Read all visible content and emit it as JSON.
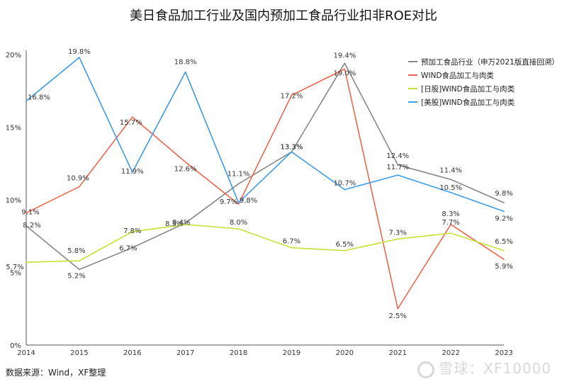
{
  "title": "美日食品加工行业及国内预加工食品行业扣非ROE对比",
  "source": "数据来源：Wind，XF整理",
  "watermark": "雪球：XF10000",
  "chart_data": {
    "type": "line",
    "categories": [
      "2014",
      "2015",
      "2016",
      "2017",
      "2018",
      "2019",
      "2020",
      "2021",
      "2022",
      "2023"
    ],
    "ylim": [
      0,
      20
    ],
    "yticks": [
      "0%",
      "5%",
      "10%",
      "15%",
      "20%"
    ],
    "ytick_values": [
      0,
      5,
      10,
      15,
      20
    ],
    "grid": false,
    "legend_position": "top-right",
    "series": [
      {
        "name": "预加工食品行业（申万2021版直接回溯）",
        "color": "#888888",
        "values": [
          8.2,
          5.2,
          6.7,
          8.4,
          11.1,
          13.3,
          19.4,
          12.4,
          11.4,
          9.8
        ],
        "labels": [
          "8.2%",
          "5.2%",
          "6.7%",
          "8.4%",
          "11.1%",
          "13.3%",
          "19.4%",
          "12.4%",
          "11.4%",
          "9.8%"
        ]
      },
      {
        "name": "WIND食品加工与肉类",
        "color": "#f0664e",
        "values": [
          9.1,
          10.9,
          15.7,
          12.6,
          9.7,
          17.2,
          19.0,
          2.5,
          8.3,
          5.9
        ],
        "labels": [
          "9.1%",
          "10.9%",
          "15.7%",
          "12.6%",
          "9.7%",
          "17.2%",
          "19.0%",
          "2.5%",
          "8.3%",
          "5.9%"
        ]
      },
      {
        "name": "[日股]WIND食品加工与肉类",
        "color": "#c8e034",
        "values": [
          5.7,
          5.8,
          7.8,
          8.3,
          8.0,
          6.7,
          6.5,
          7.3,
          7.7,
          6.5
        ],
        "labels": [
          "5.7%",
          "5.8%",
          "7.8%",
          "8.3%",
          "8.0%",
          "6.7%",
          "6.5%",
          "7.3%",
          "7.7%",
          "6.5%"
        ]
      },
      {
        "name": "[美股]WIND食品加工与肉类",
        "color": "#3d9be9",
        "values": [
          16.8,
          19.8,
          11.9,
          18.8,
          9.8,
          13.3,
          10.7,
          11.7,
          10.5,
          9.2
        ],
        "labels": [
          "16.8%",
          "19.8%",
          "11.9%",
          "18.8%",
          "9.8%",
          "13.3%",
          "10.7%",
          "11.7%",
          "10.5%",
          "9.2%"
        ]
      }
    ]
  }
}
